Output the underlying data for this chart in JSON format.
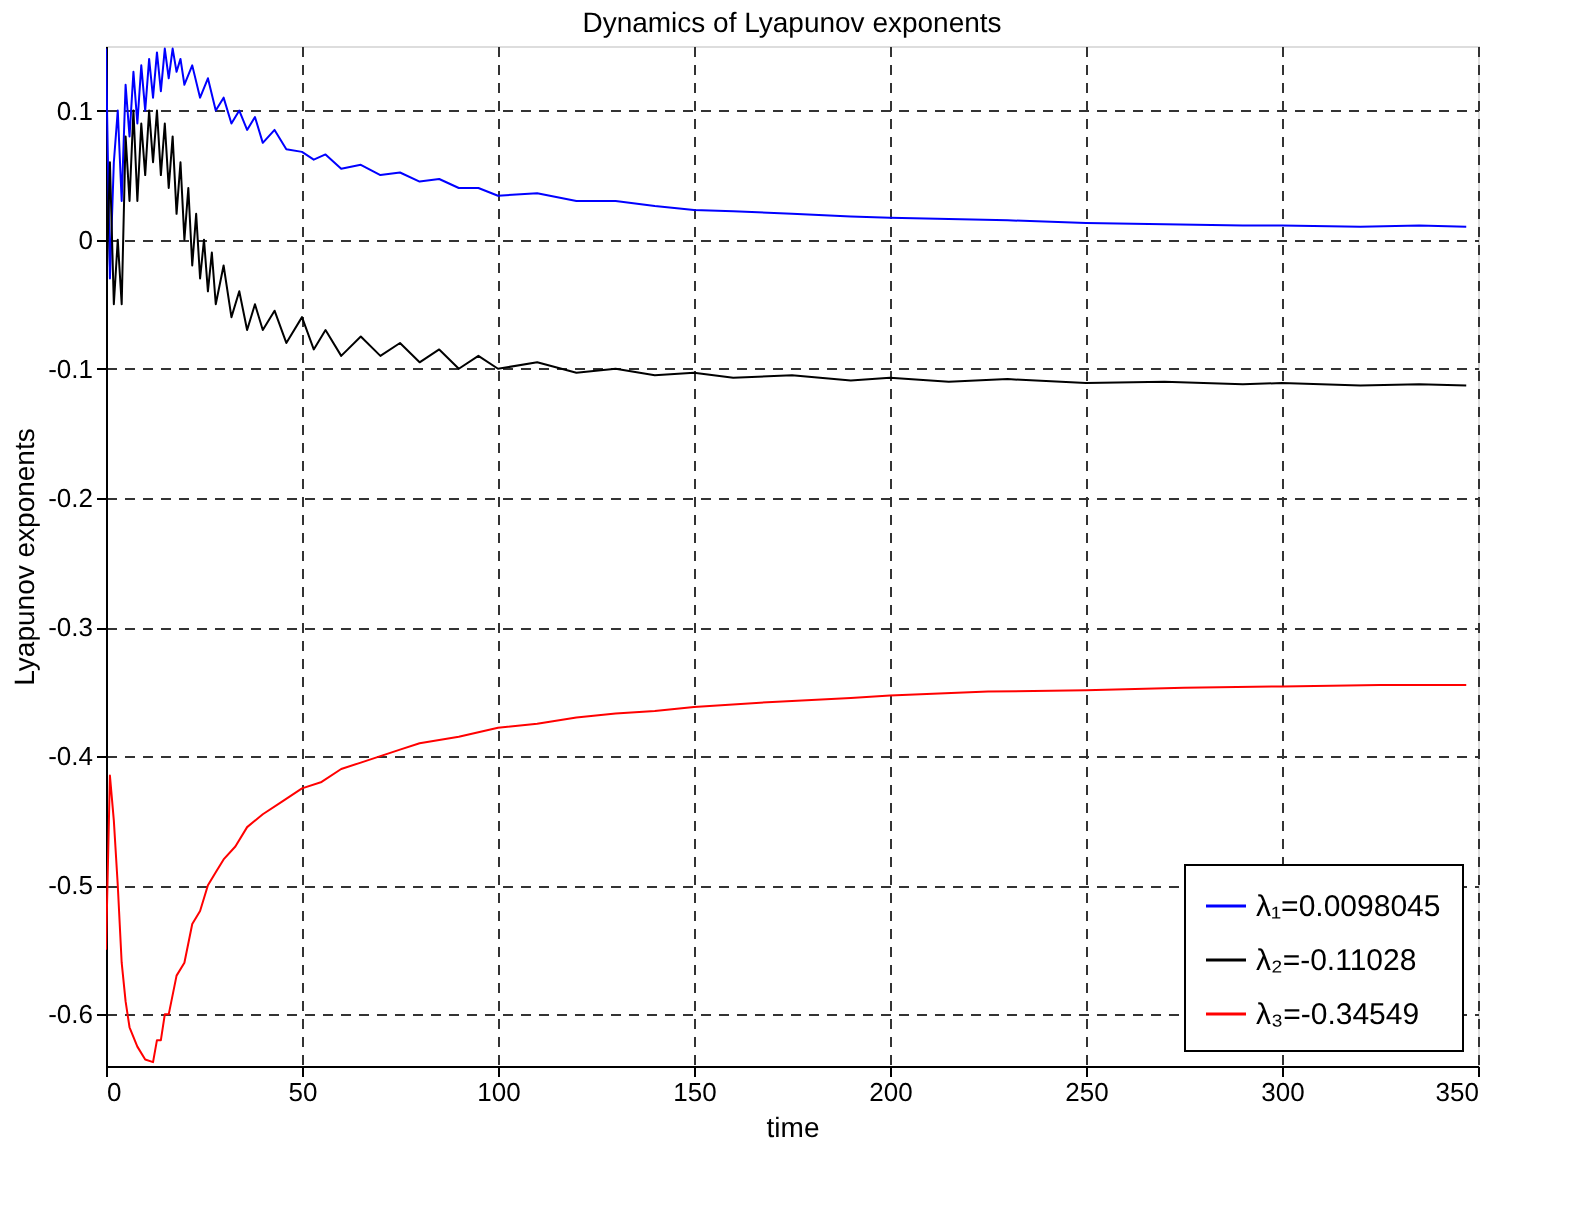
{
  "chart_data": {
    "type": "line",
    "title": "Dynamics of Lyapunov exponents",
    "xlabel": "time",
    "ylabel": "Lyapunov exponents",
    "xlim": [
      0,
      350
    ],
    "ylim": [
      -0.64,
      0.15
    ],
    "xticks": [
      0,
      50,
      100,
      150,
      200,
      250,
      300,
      350
    ],
    "yticks": [
      -0.6,
      -0.5,
      -0.4,
      -0.3,
      -0.2,
      -0.1,
      0,
      0.1
    ],
    "grid": true,
    "legend": "bottom right",
    "line_style": "solid",
    "series": [
      {
        "name": "λ₁=0.0098045",
        "color": "#0000ff",
        "x": [
          0,
          1,
          2,
          3,
          4,
          5,
          6,
          7,
          8,
          9,
          10,
          11,
          12,
          13,
          14,
          15,
          16,
          17,
          18,
          19,
          20,
          22,
          24,
          26,
          28,
          30,
          32,
          34,
          36,
          38,
          40,
          43,
          46,
          50,
          53,
          56,
          60,
          65,
          70,
          75,
          80,
          85,
          90,
          95,
          100,
          110,
          120,
          130,
          140,
          150,
          160,
          175,
          190,
          200,
          215,
          230,
          250,
          270,
          290,
          300,
          320,
          335,
          347
        ],
        "values": [
          0.148,
          -0.03,
          0.06,
          0.1,
          0.03,
          0.12,
          0.08,
          0.13,
          0.09,
          0.135,
          0.1,
          0.14,
          0.11,
          0.145,
          0.115,
          0.148,
          0.125,
          0.148,
          0.13,
          0.14,
          0.12,
          0.135,
          0.11,
          0.125,
          0.1,
          0.11,
          0.09,
          0.1,
          0.085,
          0.095,
          0.075,
          0.085,
          0.07,
          0.068,
          0.062,
          0.066,
          0.055,
          0.058,
          0.05,
          0.052,
          0.045,
          0.047,
          0.04,
          0.04,
          0.034,
          0.036,
          0.03,
          0.03,
          0.026,
          0.023,
          0.022,
          0.02,
          0.018,
          0.017,
          0.016,
          0.015,
          0.013,
          0.012,
          0.011,
          0.011,
          0.01,
          0.011,
          0.01
        ]
      },
      {
        "name": "λ₂=-0.11028",
        "color": "#000000",
        "x": [
          0,
          1,
          2,
          3,
          4,
          5,
          6,
          7,
          8,
          9,
          10,
          11,
          12,
          13,
          14,
          15,
          16,
          17,
          18,
          19,
          20,
          21,
          22,
          23,
          24,
          25,
          26,
          27,
          28,
          30,
          32,
          34,
          36,
          38,
          40,
          43,
          46,
          50,
          53,
          56,
          60,
          65,
          70,
          75,
          80,
          85,
          90,
          95,
          100,
          110,
          120,
          130,
          140,
          150,
          160,
          175,
          190,
          200,
          215,
          230,
          250,
          270,
          290,
          300,
          320,
          335,
          347
        ],
        "values": [
          -0.05,
          0.06,
          -0.05,
          0.0,
          -0.05,
          0.08,
          0.03,
          0.1,
          0.03,
          0.09,
          0.05,
          0.1,
          0.06,
          0.1,
          0.05,
          0.09,
          0.04,
          0.08,
          0.02,
          0.06,
          0.0,
          0.04,
          -0.02,
          0.02,
          -0.03,
          0.0,
          -0.04,
          -0.01,
          -0.05,
          -0.02,
          -0.06,
          -0.04,
          -0.07,
          -0.05,
          -0.07,
          -0.055,
          -0.08,
          -0.06,
          -0.085,
          -0.07,
          -0.09,
          -0.075,
          -0.09,
          -0.08,
          -0.095,
          -0.085,
          -0.1,
          -0.09,
          -0.1,
          -0.095,
          -0.103,
          -0.1,
          -0.105,
          -0.103,
          -0.107,
          -0.105,
          -0.109,
          -0.107,
          -0.11,
          -0.108,
          -0.111,
          -0.11,
          -0.112,
          -0.111,
          -0.113,
          -0.112,
          -0.113
        ]
      },
      {
        "name": "λ₃=-0.34549",
        "color": "#ff0000",
        "x": [
          0,
          1,
          2,
          3,
          4,
          5,
          6,
          8,
          10,
          12,
          13,
          14,
          15,
          16,
          18,
          20,
          22,
          24,
          26,
          28,
          30,
          33,
          36,
          40,
          45,
          50,
          55,
          60,
          65,
          70,
          75,
          80,
          90,
          100,
          110,
          120,
          130,
          140,
          150,
          170,
          190,
          200,
          225,
          250,
          275,
          300,
          325,
          347
        ],
        "values": [
          -0.55,
          -0.415,
          -0.45,
          -0.5,
          -0.56,
          -0.59,
          -0.61,
          -0.625,
          -0.635,
          -0.637,
          -0.62,
          -0.62,
          -0.6,
          -0.6,
          -0.57,
          -0.56,
          -0.53,
          -0.52,
          -0.5,
          -0.49,
          -0.48,
          -0.47,
          -0.455,
          -0.445,
          -0.435,
          -0.425,
          -0.42,
          -0.41,
          -0.405,
          -0.4,
          -0.395,
          -0.39,
          -0.385,
          -0.378,
          -0.375,
          -0.37,
          -0.367,
          -0.365,
          -0.362,
          -0.358,
          -0.355,
          -0.353,
          -0.35,
          -0.349,
          -0.347,
          -0.346,
          -0.345,
          -0.345
        ]
      }
    ]
  }
}
